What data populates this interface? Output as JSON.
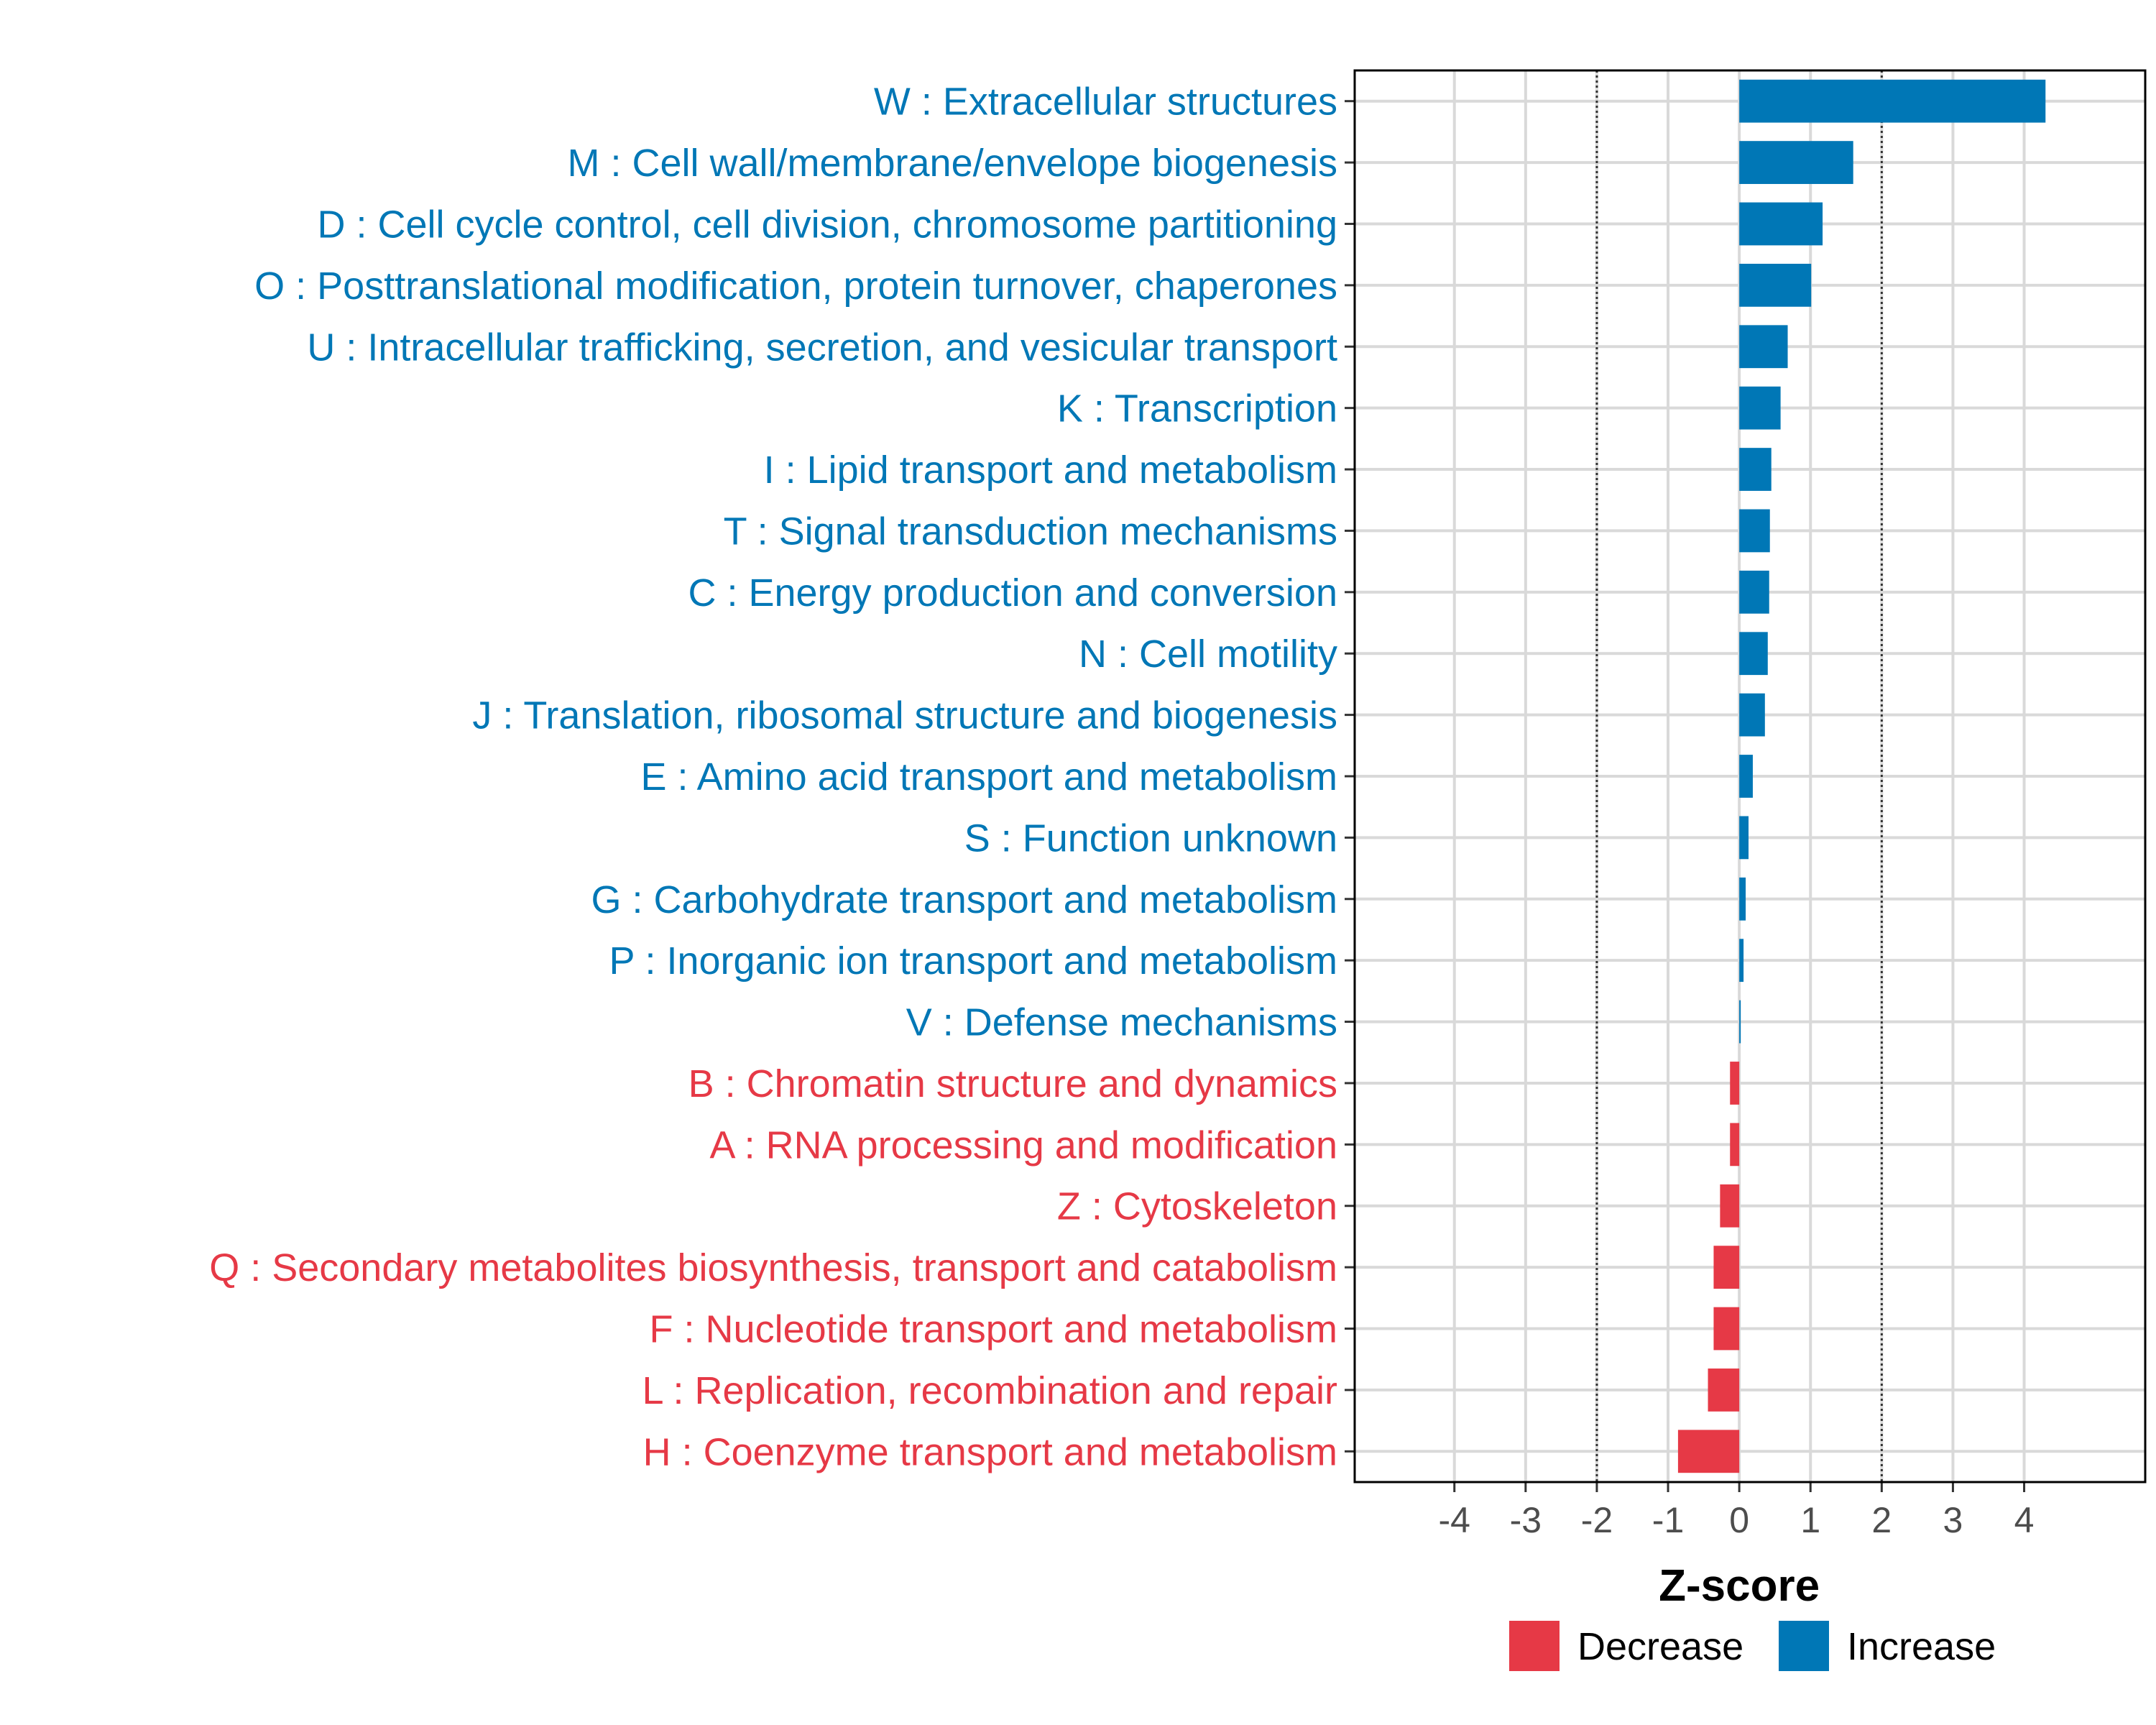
{
  "chart_data": {
    "type": "bar",
    "orientation": "horizontal",
    "xlabel": "Z-score",
    "xlim": [
      -5.4,
      5.7
    ],
    "xticks": [
      -4,
      -3,
      -2,
      -1,
      0,
      1,
      2,
      3,
      4
    ],
    "xtick_labels": [
      "-4",
      "-3",
      "-2",
      "-1",
      "0",
      "1",
      "2",
      "3",
      "4"
    ],
    "reference_lines": [
      -2,
      2
    ],
    "grid": true,
    "legend": {
      "position": "bottom-right",
      "items": [
        {
          "label": "Decrease",
          "color": "#E63946"
        },
        {
          "label": "Increase",
          "color": "#0077B6"
        }
      ]
    },
    "categories": [
      "W : Extracellular structures",
      "M : Cell wall/membrane/envelope biogenesis",
      "D : Cell cycle control, cell division, chromosome partitioning",
      "O : Posttranslational modification, protein turnover, chaperones",
      "U : Intracellular trafficking, secretion, and vesicular transport",
      "K : Transcription",
      "I : Lipid transport and metabolism",
      "T : Signal transduction mechanisms",
      "C : Energy production and conversion",
      "N : Cell motility",
      "J : Translation, ribosomal structure and biogenesis",
      "E : Amino acid transport and metabolism",
      "S : Function unknown",
      "G : Carbohydrate transport and metabolism",
      "P : Inorganic ion transport and metabolism",
      "V : Defense mechanisms",
      "B : Chromatin structure and dynamics",
      "A : RNA processing and modification",
      "Z : Cytoskeleton",
      "Q : Secondary metabolites biosynthesis, transport and catabolism",
      "F : Nucleotide transport and metabolism",
      "L : Replication, recombination and repair",
      "H : Coenzyme transport and metabolism"
    ],
    "values": [
      4.3,
      1.6,
      1.17,
      1.01,
      0.68,
      0.58,
      0.45,
      0.43,
      0.42,
      0.4,
      0.36,
      0.19,
      0.13,
      0.09,
      0.06,
      0.02,
      -0.13,
      -0.13,
      -0.27,
      -0.36,
      -0.36,
      -0.44,
      -0.86
    ],
    "groups": [
      "Increase",
      "Increase",
      "Increase",
      "Increase",
      "Increase",
      "Increase",
      "Increase",
      "Increase",
      "Increase",
      "Increase",
      "Increase",
      "Increase",
      "Increase",
      "Increase",
      "Increase",
      "Increase",
      "Decrease",
      "Decrease",
      "Decrease",
      "Decrease",
      "Decrease",
      "Decrease",
      "Decrease"
    ]
  }
}
